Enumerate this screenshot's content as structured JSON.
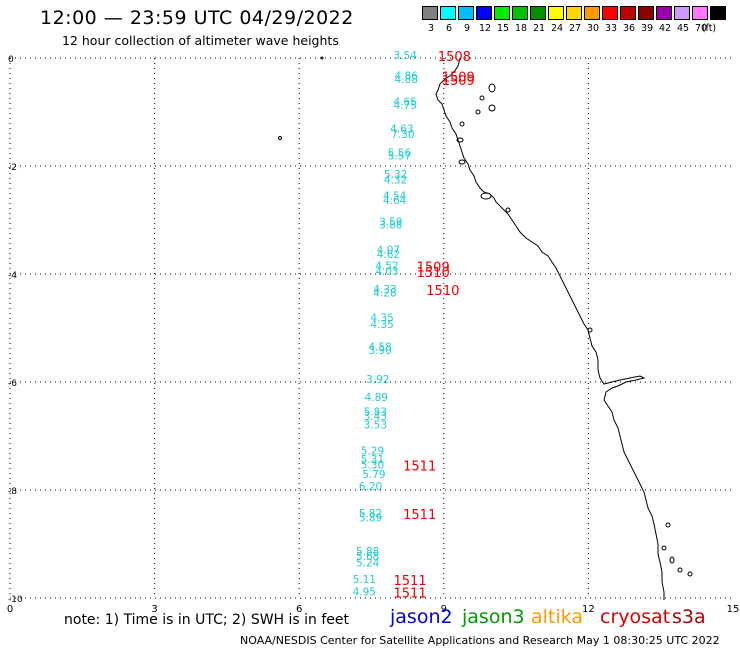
{
  "header": {
    "title": "12:00 — 23:59 UTC 04/29/2022",
    "subtitle": "12 hour collection of altimeter wave heights"
  },
  "scale": {
    "unit": "(ft)",
    "entries": [
      {
        "label": "3",
        "color": "#808080"
      },
      {
        "label": "6",
        "color": "#00ffff"
      },
      {
        "label": "9",
        "color": "#00bfff"
      },
      {
        "label": "12",
        "color": "#0000ff"
      },
      {
        "label": "15",
        "color": "#00ee00"
      },
      {
        "label": "18",
        "color": "#00c000"
      },
      {
        "label": "21",
        "color": "#009000"
      },
      {
        "label": "24",
        "color": "#ffff00"
      },
      {
        "label": "27",
        "color": "#ffd700"
      },
      {
        "label": "30",
        "color": "#ff9900"
      },
      {
        "label": "33",
        "color": "#ff0000"
      },
      {
        "label": "36",
        "color": "#c00000"
      },
      {
        "label": "39",
        "color": "#8b0000"
      },
      {
        "label": "42",
        "color": "#9900aa"
      },
      {
        "label": "45",
        "color": "#cc99ff"
      },
      {
        "label": "70",
        "color": "#ff77ff"
      },
      {
        "label": "",
        "color": "#000000"
      }
    ]
  },
  "map": {
    "x_ticks": [
      "0",
      "3",
      "6",
      "9",
      "12",
      "15"
    ],
    "y_ticks": [
      "0",
      "-2",
      "-4",
      "-6",
      "-8",
      "-10"
    ],
    "lon_range": [
      0,
      15
    ],
    "lat_range": [
      -10,
      0
    ],
    "observations": [
      {
        "lon": 8.2,
        "lat": -0.02,
        "swh": "3.54"
      },
      {
        "lon": 8.22,
        "lat": -0.4,
        "swh": "4.86"
      },
      {
        "lon": 8.22,
        "lat": -0.46,
        "swh": "4.88"
      },
      {
        "lon": 8.2,
        "lat": -0.88,
        "swh": "4.65"
      },
      {
        "lon": 8.2,
        "lat": -0.94,
        "swh": "4.75"
      },
      {
        "lon": 8.13,
        "lat": -1.38,
        "swh": "4.63"
      },
      {
        "lon": 8.15,
        "lat": -1.48,
        "swh": "7.30"
      },
      {
        "lon": 8.08,
        "lat": -1.82,
        "swh": "5.56"
      },
      {
        "lon": 8.08,
        "lat": -1.88,
        "swh": "5.57"
      },
      {
        "lon": 8.0,
        "lat": -2.22,
        "swh": "5.32"
      },
      {
        "lon": 8.0,
        "lat": -2.32,
        "swh": "4.32"
      },
      {
        "lon": 7.98,
        "lat": -2.62,
        "swh": "4.54"
      },
      {
        "lon": 7.98,
        "lat": -2.7,
        "swh": "4.64"
      },
      {
        "lon": 7.9,
        "lat": -3.1,
        "swh": "3.59"
      },
      {
        "lon": 7.9,
        "lat": -3.16,
        "swh": "3.88"
      },
      {
        "lon": 7.85,
        "lat": -3.62,
        "swh": "4.07"
      },
      {
        "lon": 7.85,
        "lat": -3.7,
        "swh": "4.62"
      },
      {
        "lon": 7.82,
        "lat": -3.92,
        "swh": "4.52"
      },
      {
        "lon": 7.82,
        "lat": -4.02,
        "swh": "4.03"
      },
      {
        "lon": 7.78,
        "lat": -4.35,
        "swh": "4.33"
      },
      {
        "lon": 7.78,
        "lat": -4.42,
        "swh": "4.28"
      },
      {
        "lon": 7.72,
        "lat": -4.88,
        "swh": "4.35"
      },
      {
        "lon": 7.72,
        "lat": -5.0,
        "swh": "4.35"
      },
      {
        "lon": 7.68,
        "lat": -5.42,
        "swh": "4.58"
      },
      {
        "lon": 7.68,
        "lat": -5.48,
        "swh": "3.90"
      },
      {
        "lon": 7.63,
        "lat": -6.02,
        "swh": "3.92"
      },
      {
        "lon": 7.6,
        "lat": -6.35,
        "swh": "4.89"
      },
      {
        "lon": 7.58,
        "lat": -6.62,
        "swh": "5.83"
      },
      {
        "lon": 7.58,
        "lat": -6.7,
        "swh": "3.43"
      },
      {
        "lon": 7.58,
        "lat": -6.86,
        "swh": "3.53"
      },
      {
        "lon": 7.52,
        "lat": -7.34,
        "swh": "5.29"
      },
      {
        "lon": 7.52,
        "lat": -7.5,
        "swh": "5.31"
      },
      {
        "lon": 7.52,
        "lat": -7.6,
        "swh": "5.30"
      },
      {
        "lon": 7.55,
        "lat": -7.78,
        "swh": "5.79"
      },
      {
        "lon": 7.48,
        "lat": -8.0,
        "swh": "6.20"
      },
      {
        "lon": 7.48,
        "lat": -8.5,
        "swh": "5.82"
      },
      {
        "lon": 7.48,
        "lat": -8.58,
        "swh": "5.89"
      },
      {
        "lon": 7.42,
        "lat": -9.2,
        "swh": "5.88"
      },
      {
        "lon": 7.42,
        "lat": -9.3,
        "swh": "5.68"
      },
      {
        "lon": 7.42,
        "lat": -9.42,
        "swh": "5.24"
      },
      {
        "lon": 7.35,
        "lat": -9.72,
        "swh": "5.11"
      },
      {
        "lon": 7.35,
        "lat": -9.95,
        "swh": "4.95"
      }
    ],
    "pass_labels": [
      {
        "lon": 9.22,
        "lat": -0.02,
        "text": "1508"
      },
      {
        "lon": 9.3,
        "lat": -0.4,
        "text": "1509"
      },
      {
        "lon": 9.3,
        "lat": -0.46,
        "text": "1509"
      },
      {
        "lon": 8.78,
        "lat": -3.92,
        "text": "1509"
      },
      {
        "lon": 8.78,
        "lat": -4.02,
        "text": "1510"
      },
      {
        "lon": 8.98,
        "lat": -4.35,
        "text": "1510"
      },
      {
        "lon": 8.5,
        "lat": -7.6,
        "text": "1511"
      },
      {
        "lon": 8.5,
        "lat": -8.5,
        "text": "1511"
      },
      {
        "lon": 8.3,
        "lat": -9.72,
        "text": "1511"
      },
      {
        "lon": 8.3,
        "lat": -9.95,
        "text": "1511"
      }
    ]
  },
  "footer": {
    "note": "note: 1) Time is in UTC; 2) SWH is in feet",
    "satellites": [
      {
        "name": "jason2",
        "color": "#0000dd"
      },
      {
        "name": "jason3",
        "color": "#009900"
      },
      {
        "name": "altika",
        "color": "#ff9900"
      },
      {
        "name": "cryosat",
        "color": "#dd0000"
      },
      {
        "name": "s3a",
        "color": "#aa0000"
      }
    ],
    "credit": "NOAA/NESDIS Center for Satellite Applications and Research   May  1 08:30:25 UTC 2022"
  }
}
